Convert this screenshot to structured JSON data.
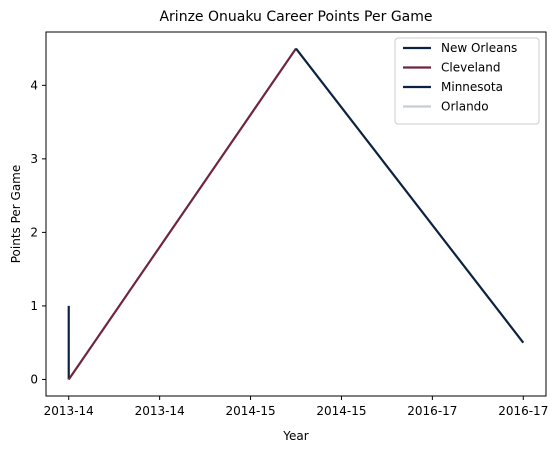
{
  "chart_data": {
    "type": "line",
    "title": "Arinze Onuaku Career Points Per Game",
    "xlabel": "Year",
    "ylabel": "Points Per Game",
    "x_tick_labels": [
      "2013-14",
      "2013-14",
      "2014-15",
      "2014-15",
      "2016-17",
      "2016-17"
    ],
    "x_tick_values": [
      0,
      1,
      2,
      3,
      4,
      5
    ],
    "xlim": [
      -0.25,
      5.25
    ],
    "y_ticks": [
      0,
      1,
      2,
      3,
      4
    ],
    "ylim": [
      -0.225,
      4.725
    ],
    "grid": false,
    "legend_position": "top-right",
    "series": [
      {
        "name": "New Orleans",
        "color": "#0C2340",
        "points": [
          [
            0,
            0
          ],
          [
            0,
            1
          ]
        ]
      },
      {
        "name": "Cleveland",
        "color": "#6F263D",
        "points": [
          [
            0,
            0
          ],
          [
            2.5,
            4.5
          ]
        ]
      },
      {
        "name": "Minnesota",
        "color": "#0C2340",
        "points": [
          [
            2.5,
            4.5
          ],
          [
            5,
            0.5
          ]
        ]
      },
      {
        "name": "Orlando",
        "color": "#C4CED4",
        "points": []
      }
    ]
  }
}
